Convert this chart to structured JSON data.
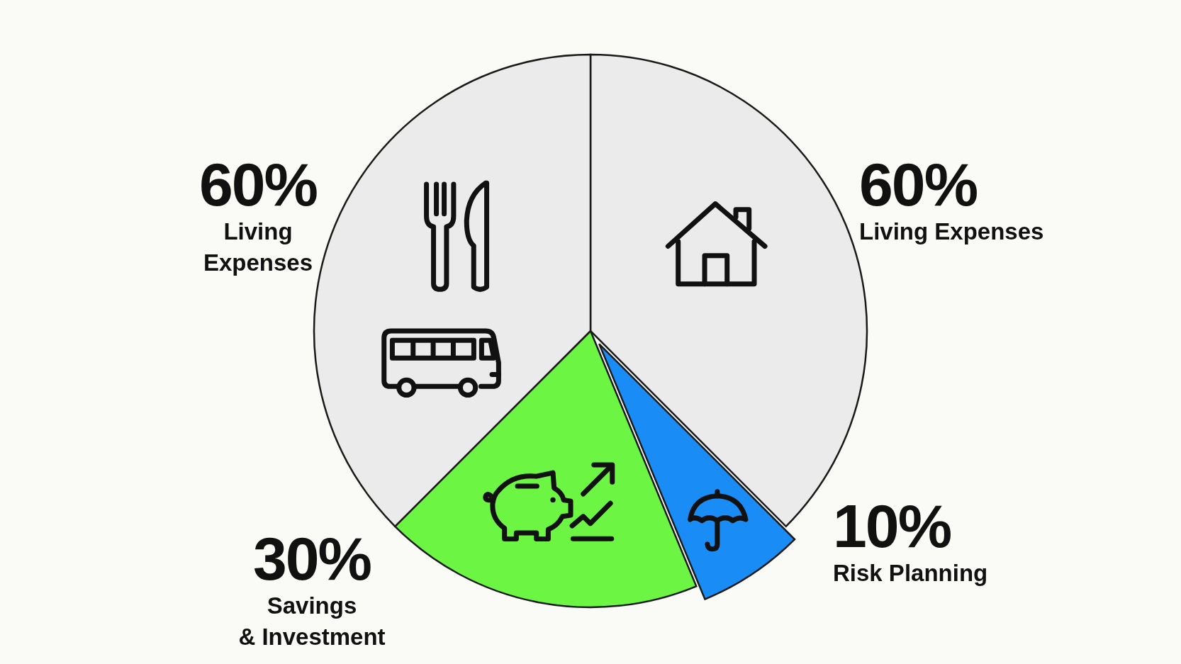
{
  "chart_data": {
    "type": "pie",
    "categories": [
      "Living Expenses",
      "Risk Planning",
      "Savings & Investment",
      "Living Expenses"
    ],
    "values": [
      60,
      10,
      30,
      60
    ],
    "value_labels": [
      "60%",
      "10%",
      "30%",
      "60%"
    ],
    "colors": [
      "#ebebeb",
      "#1a8cf5",
      "#6cf542",
      "#ebebeb"
    ]
  }
}
